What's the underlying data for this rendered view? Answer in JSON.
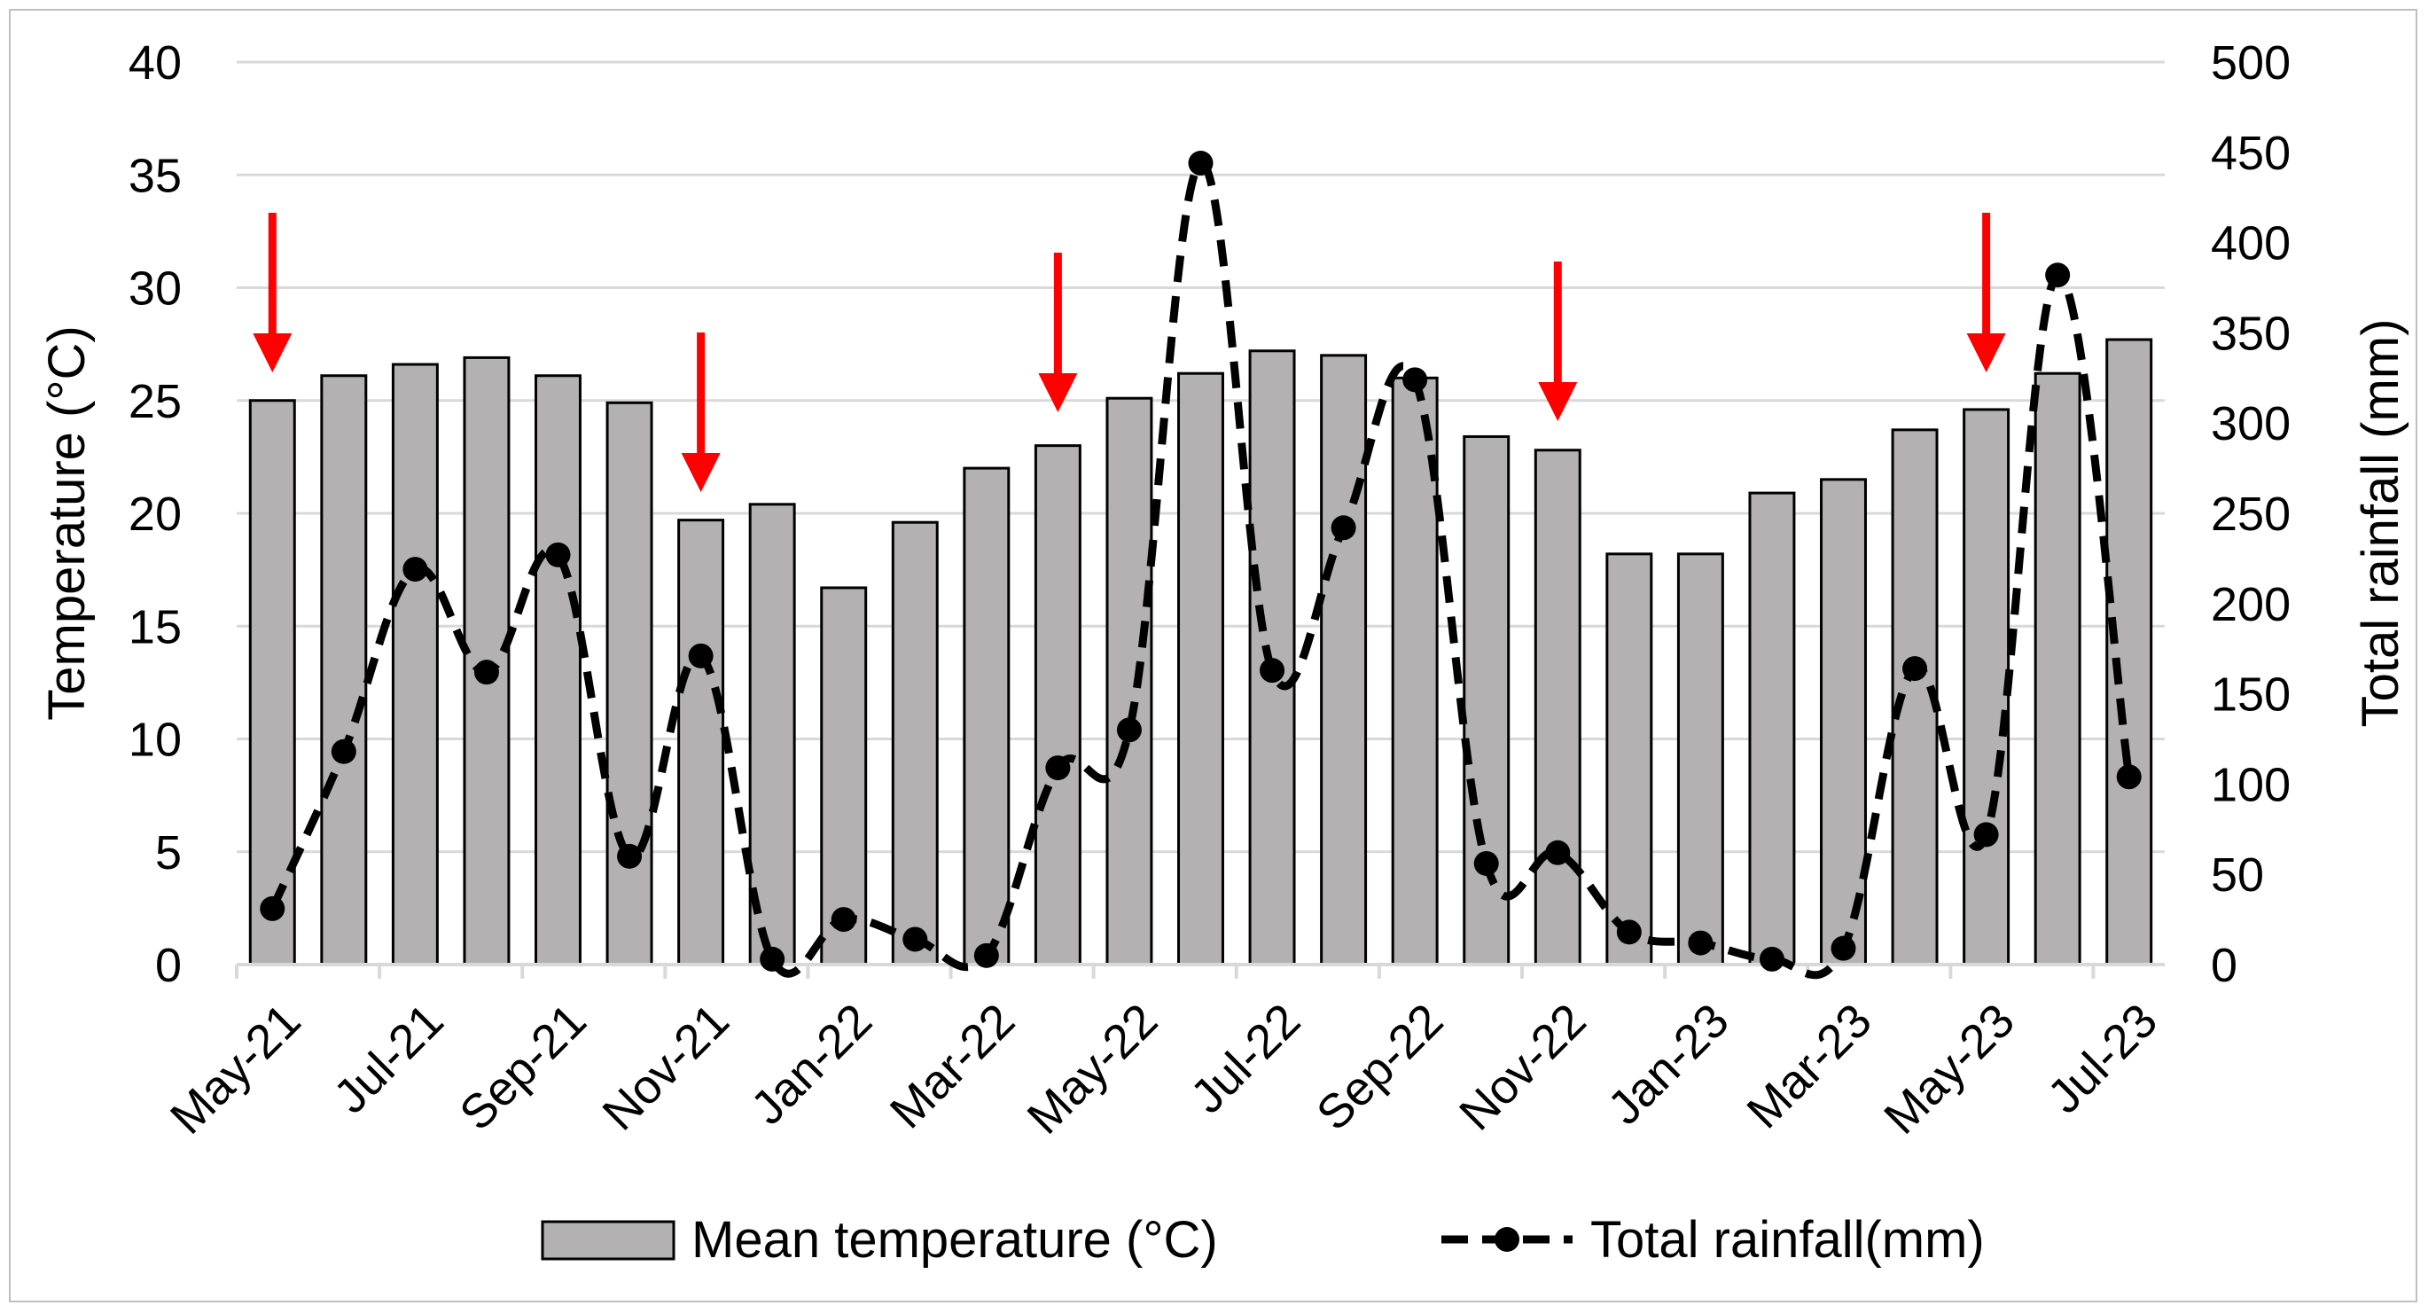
{
  "chart_data": {
    "type": "bar+line",
    "title": "",
    "xlabel": "",
    "ylabel": "Temperature (°C)",
    "y2label": "Total rainfall (mm)",
    "ylim": [
      0,
      40
    ],
    "y2lim": [
      0,
      500
    ],
    "yticks": [
      "0",
      "5",
      "10",
      "15",
      "20",
      "25",
      "30",
      "35",
      "40"
    ],
    "y2ticks": [
      "0",
      "50",
      "100",
      "150",
      "200",
      "250",
      "300",
      "350",
      "400",
      "450",
      "500"
    ],
    "grid": true,
    "legend_position": "bottom",
    "categories": [
      "May-21",
      "Jun-21",
      "Jul-21",
      "Aug-21",
      "Sep-21",
      "Oct-21",
      "Nov-21",
      "Dec-21",
      "Jan-22",
      "Feb-22",
      "Mar-22",
      "Apr-22",
      "May-22",
      "Jun-22",
      "Jul-22",
      "Aug-22",
      "Sep-22",
      "Oct-22",
      "Nov-22",
      "Dec-22",
      "Jan-23",
      "Feb-23",
      "Mar-23",
      "Apr-23",
      "May-23",
      "Jun-23",
      "Jul-23"
    ],
    "xticklabels": [
      "May-21",
      "Jul-21",
      "Sep-21",
      "Nov-21",
      "Jan-22",
      "Mar-22",
      "May-22",
      "Jul-22",
      "Sep-22",
      "Nov-22",
      "Jan-23",
      "Mar-23",
      "May-23",
      "Jul-23"
    ],
    "series": [
      {
        "name": "Mean temperature (°C)",
        "type": "bar",
        "axis": "left",
        "color": "#b3b1b1",
        "values": [
          25.0,
          26.1,
          26.6,
          26.9,
          26.1,
          24.9,
          19.7,
          20.4,
          16.7,
          19.6,
          22.0,
          23.0,
          25.1,
          26.2,
          27.2,
          27.0,
          26.0,
          23.4,
          22.8,
          18.2,
          18.2,
          20.9,
          21.5,
          23.7,
          24.6,
          26.2,
          27.7
        ]
      },
      {
        "name": "Total rainfall(mm)",
        "type": "line",
        "axis": "right",
        "color": "#000000",
        "style": "dashed",
        "marker": "circle",
        "values": [
          31,
          118,
          219,
          162,
          227,
          60,
          171,
          3,
          25,
          14,
          5,
          109,
          130,
          444,
          163,
          242,
          324,
          56,
          62,
          18,
          12,
          3,
          9,
          164,
          72,
          382,
          104
        ]
      }
    ],
    "annotations": {
      "type": "down-arrow",
      "color": "#ff0000",
      "at_categories": [
        "May-21",
        "Nov-21",
        "Apr-22",
        "Nov-22",
        "May-23"
      ]
    }
  }
}
